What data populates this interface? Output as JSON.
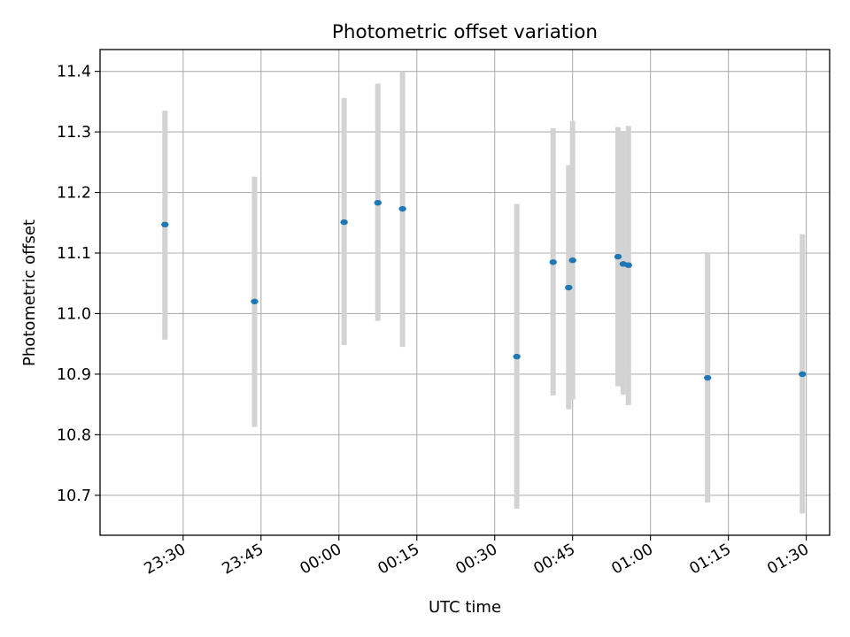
{
  "chart_data": {
    "type": "scatter",
    "title": "Photometric offset variation",
    "xlabel": "UTC time",
    "ylabel": "Photometric offset",
    "x_axis_type": "time",
    "xlim": [
      "23:14:00",
      "01:34:30"
    ],
    "ylim": [
      10.634,
      11.436
    ],
    "grid": true,
    "x_ticks": [
      "23:30",
      "23:45",
      "00:00",
      "00:15",
      "00:30",
      "00:45",
      "01:00",
      "01:15",
      "01:30"
    ],
    "y_ticks": [
      "10.7",
      "10.8",
      "10.9",
      "11.0",
      "11.1",
      "11.2",
      "11.3",
      "11.4"
    ],
    "x_tick_times": [
      "23:30:00",
      "23:45:00",
      "00:00:00",
      "00:15:00",
      "00:30:00",
      "00:45:00",
      "01:00:00",
      "01:15:00",
      "01:30:00"
    ],
    "y_tick_values": [
      10.7,
      10.8,
      10.9,
      11.0,
      11.1,
      11.2,
      11.3,
      11.4
    ],
    "series": [
      {
        "marker_color": "#1f77b4",
        "error_color": "#d3d3d3",
        "points": [
          {
            "x": "23:26:30",
            "y": 11.147,
            "yerr_low": 10.957,
            "yerr_high": 11.335
          },
          {
            "x": "23:43:45",
            "y": 11.02,
            "yerr_low": 10.813,
            "yerr_high": 11.226
          },
          {
            "x": "00:01:00",
            "y": 11.151,
            "yerr_low": 10.948,
            "yerr_high": 11.356
          },
          {
            "x": "00:07:30",
            "y": 11.183,
            "yerr_low": 10.988,
            "yerr_high": 11.38
          },
          {
            "x": "00:12:15",
            "y": 11.173,
            "yerr_low": 10.945,
            "yerr_high": 11.4
          },
          {
            "x": "00:34:15",
            "y": 10.929,
            "yerr_low": 10.678,
            "yerr_high": 11.181
          },
          {
            "x": "00:41:15",
            "y": 11.085,
            "yerr_low": 10.865,
            "yerr_high": 11.306
          },
          {
            "x": "00:44:15",
            "y": 11.043,
            "yerr_low": 10.842,
            "yerr_high": 11.245
          },
          {
            "x": "00:45:00",
            "y": 11.088,
            "yerr_low": 10.858,
            "yerr_high": 11.318
          },
          {
            "x": "00:53:45",
            "y": 11.094,
            "yerr_low": 10.88,
            "yerr_high": 11.308
          },
          {
            "x": "00:54:45",
            "y": 11.082,
            "yerr_low": 10.866,
            "yerr_high": 11.3
          },
          {
            "x": "00:55:45",
            "y": 11.08,
            "yerr_low": 10.849,
            "yerr_high": 11.31
          },
          {
            "x": "01:11:00",
            "y": 10.894,
            "yerr_low": 10.688,
            "yerr_high": 11.1
          },
          {
            "x": "01:29:15",
            "y": 10.9,
            "yerr_low": 10.67,
            "yerr_high": 11.131
          }
        ]
      }
    ]
  }
}
